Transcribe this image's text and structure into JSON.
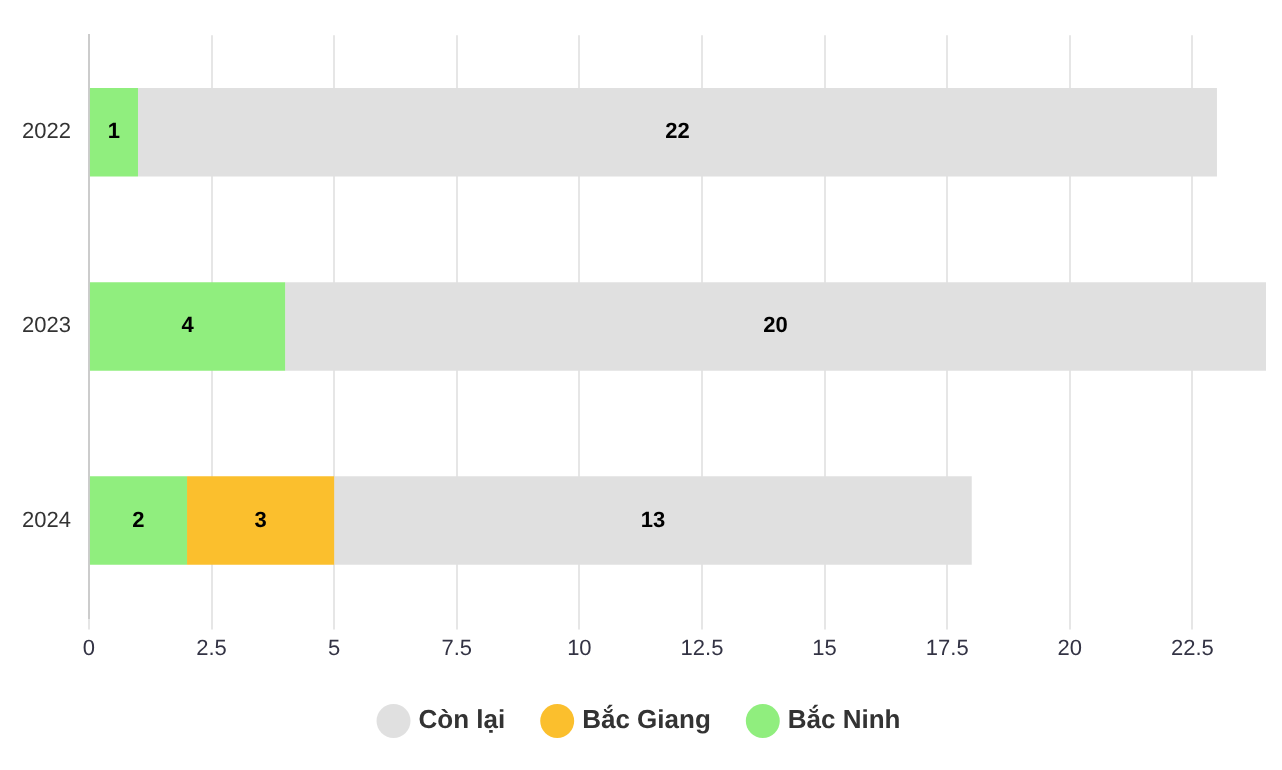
{
  "chart_data": {
    "type": "bar",
    "orientation": "horizontal",
    "stacked": true,
    "categories": [
      "2022",
      "2023",
      "2024"
    ],
    "series": [
      {
        "name": "Bắc Ninh",
        "color": "#90ee7e",
        "values": [
          1,
          4,
          2
        ]
      },
      {
        "name": "Bắc Giang",
        "color": "#fbbf2d",
        "values": [
          null,
          null,
          3
        ]
      },
      {
        "name": "Còn lại",
        "color": "#e0e0e0",
        "values": [
          22,
          20,
          13
        ]
      }
    ],
    "xlim": [
      0,
      24
    ],
    "xticks": [
      0,
      2.5,
      5,
      7.5,
      10,
      12.5,
      15,
      17.5,
      20,
      22.5
    ],
    "grid": "x",
    "legend": "bottom",
    "data_labels": true
  }
}
